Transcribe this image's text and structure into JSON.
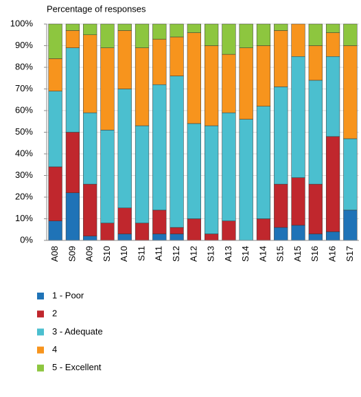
{
  "chart_data": {
    "type": "stacked_bar",
    "y_label": "Percentage of responses",
    "categories": [
      "A08",
      "S09",
      "A09",
      "S10",
      "A10",
      "S11",
      "A11",
      "S12",
      "A12",
      "S13",
      "A13",
      "S14",
      "A14",
      "S15",
      "A15",
      "S16",
      "A16",
      "S17"
    ],
    "series": [
      {
        "name": "1 - Poor",
        "color": "#1f73b7",
        "values": [
          9,
          22,
          2,
          0,
          3,
          0,
          3,
          3,
          0,
          0,
          0,
          0,
          0,
          6,
          7,
          3,
          4,
          14
        ]
      },
      {
        "name": "2",
        "color": "#c0272d",
        "values": [
          25,
          28,
          24,
          8,
          12,
          8,
          11,
          3,
          10,
          3,
          9,
          0,
          10,
          20,
          22,
          23,
          44,
          0
        ]
      },
      {
        "name": "3 - Adequate",
        "color": "#4bbfcf",
        "values": [
          35,
          39,
          33,
          43,
          55,
          45,
          58,
          70,
          44,
          50,
          50,
          56,
          52,
          45,
          56,
          48,
          37,
          33
        ]
      },
      {
        "name": "4",
        "color": "#f7941d",
        "values": [
          15,
          8,
          36,
          38,
          27,
          36,
          21,
          18,
          42,
          37,
          27,
          33,
          28,
          26,
          15,
          16,
          11,
          43
        ]
      },
      {
        "name": "5 - Excellent",
        "color": "#8dc63f",
        "values": [
          16,
          3,
          5,
          11,
          3,
          11,
          7,
          6,
          4,
          10,
          14,
          11,
          10,
          3,
          0,
          10,
          4,
          10
        ]
      }
    ],
    "ylim": [
      0,
      100
    ],
    "yticks": [
      {
        "value": 0,
        "label": "0%"
      },
      {
        "value": 10,
        "label": "10%"
      },
      {
        "value": 20,
        "label": "20%"
      },
      {
        "value": 30,
        "label": "30%"
      },
      {
        "value": 40,
        "label": "40%"
      },
      {
        "value": 50,
        "label": "50%"
      },
      {
        "value": 60,
        "label": "60%"
      },
      {
        "value": 70,
        "label": "70%"
      },
      {
        "value": 80,
        "label": "80%"
      },
      {
        "value": 90,
        "label": "90%"
      },
      {
        "value": 100,
        "label": "100%"
      }
    ],
    "grid": true,
    "legend": "bottom-left"
  }
}
